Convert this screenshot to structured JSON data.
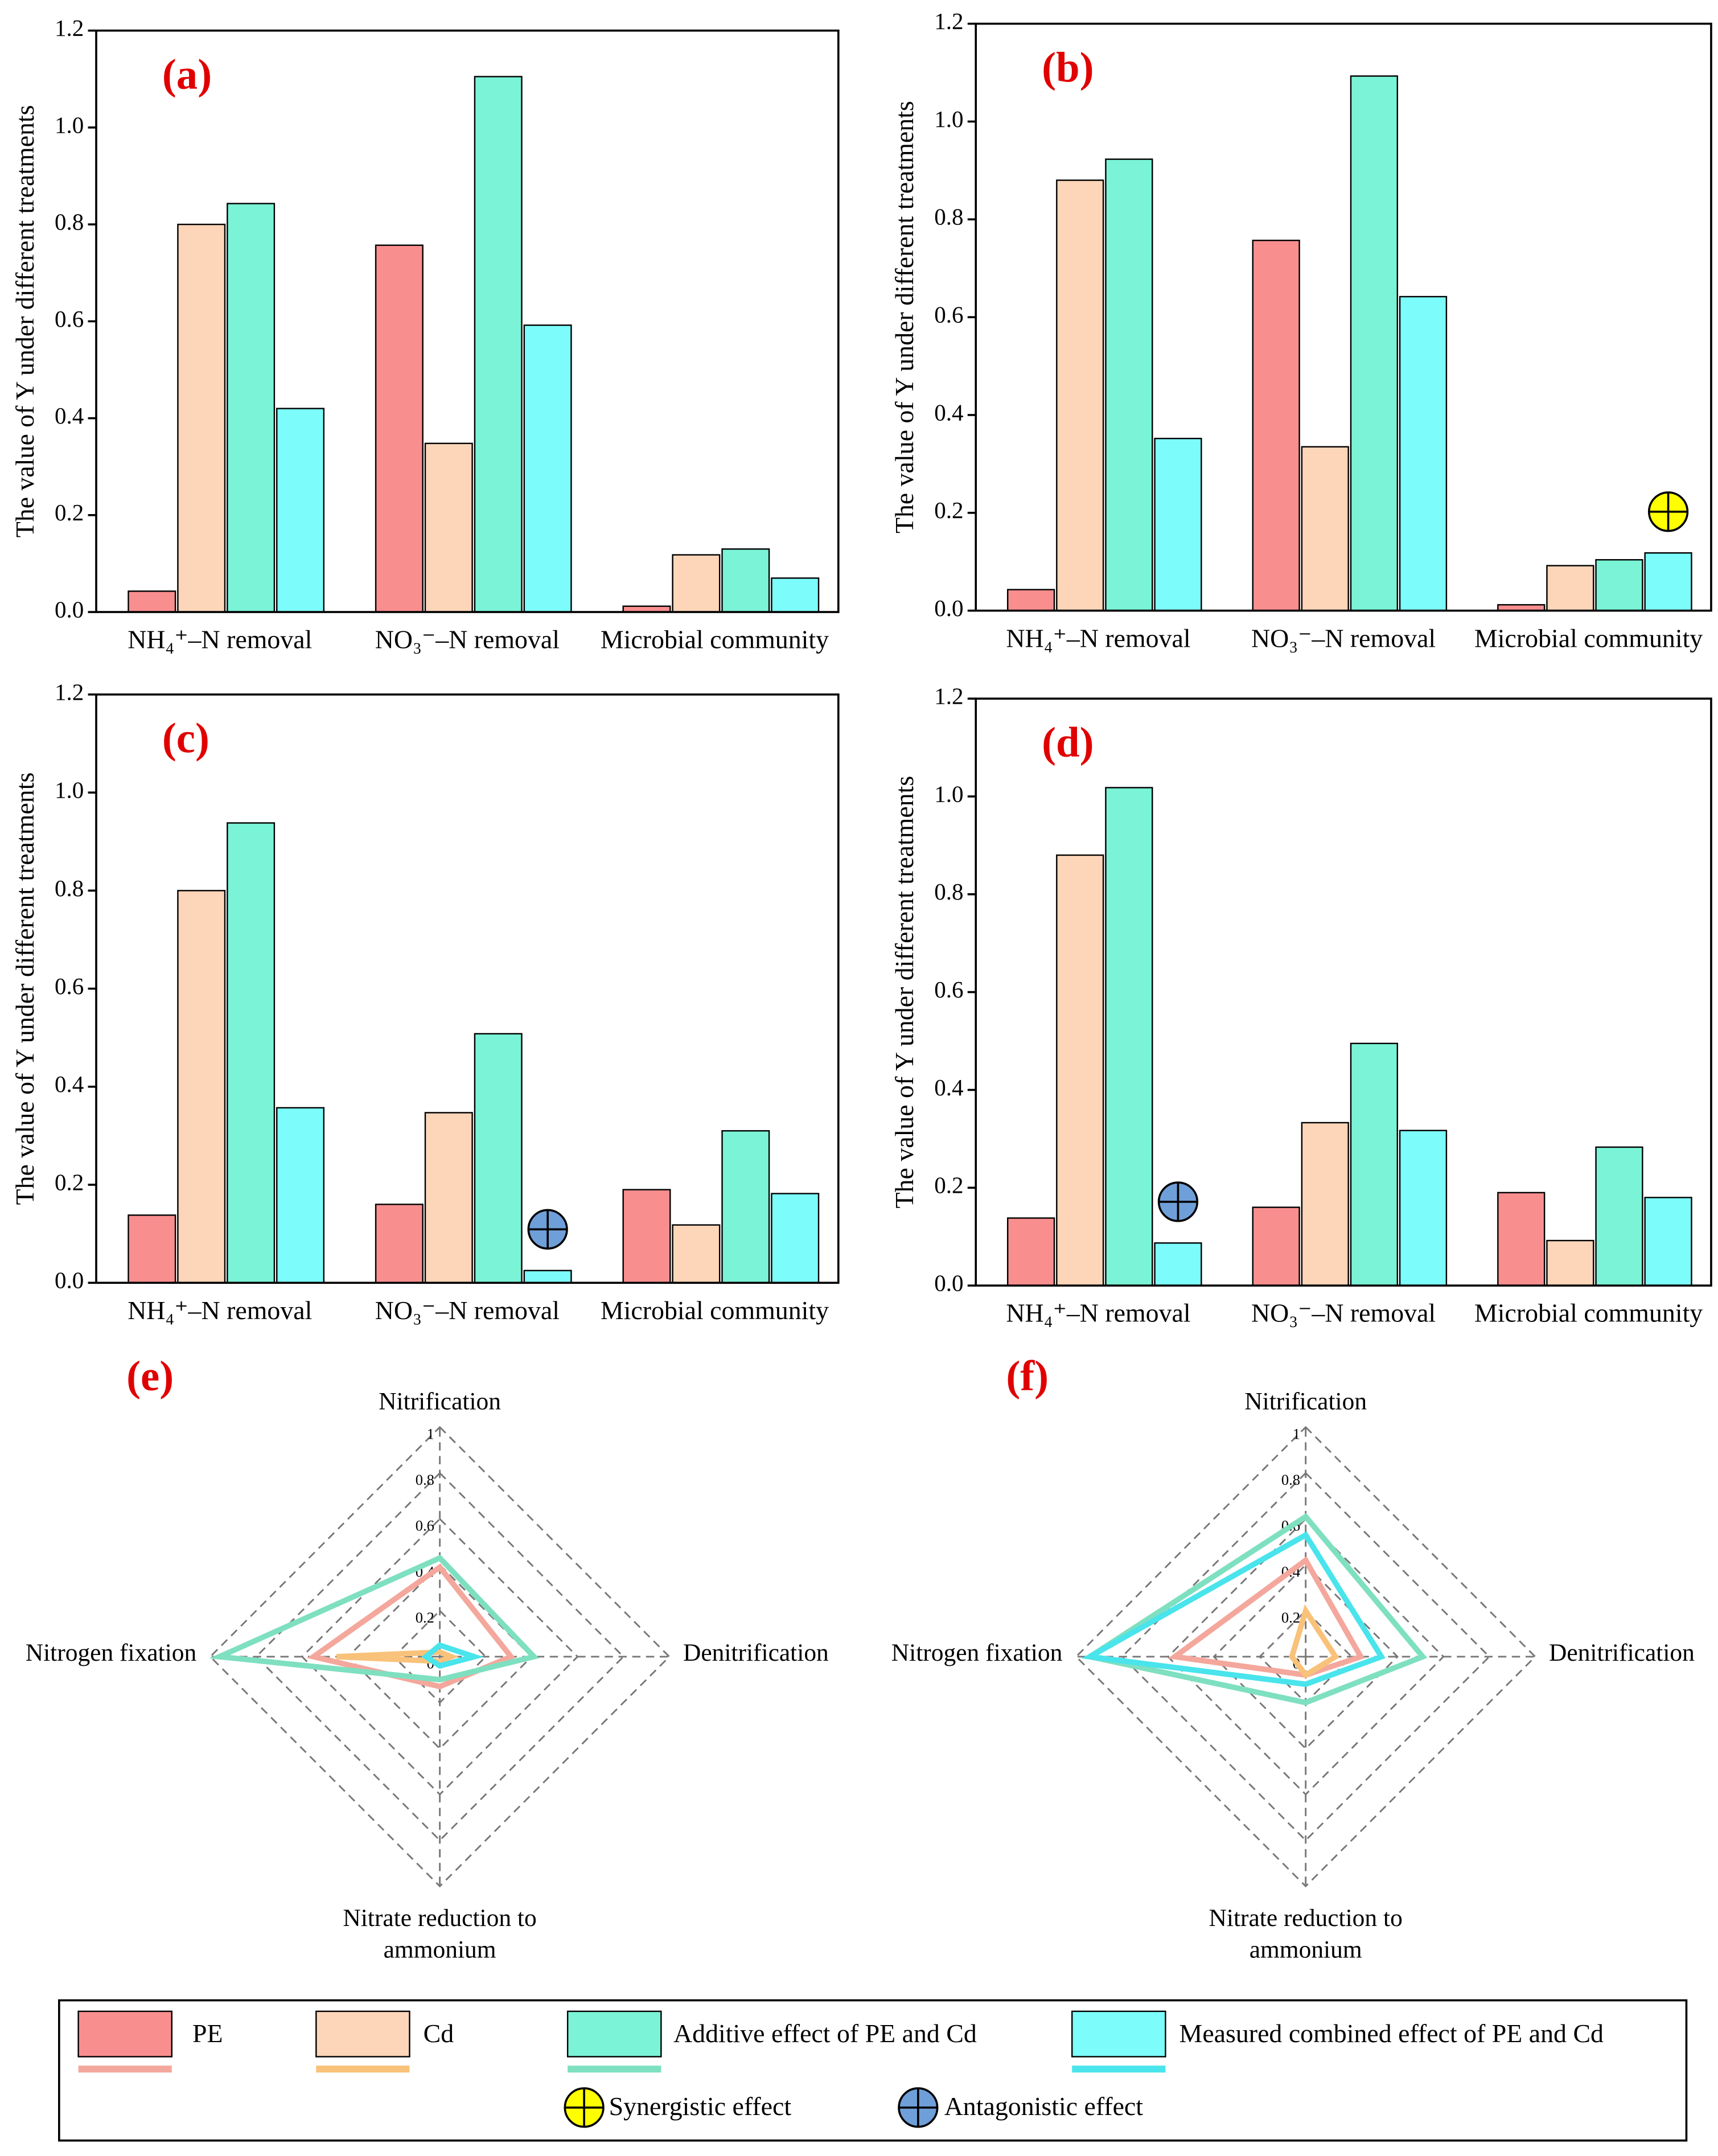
{
  "chart_data": [
    {
      "type": "bar",
      "label": "(a)",
      "ylabel": "The value of Y under different treatments",
      "categories": [
        "NH₄⁺–N removal",
        "NO₃⁻–N removal",
        "Microbial community"
      ],
      "ylim": [
        0,
        1.2
      ],
      "yticks": [
        {
          "value": 0,
          "label": "0.0"
        },
        0.2,
        0.4,
        0.6,
        0.8,
        {
          "value": 1,
          "label": "1.0"
        },
        1.2
      ],
      "series": [
        {
          "name": "PE",
          "color": "#f98e8e",
          "values": [
            0.043,
            0.757,
            0.012
          ]
        },
        {
          "name": "Cd",
          "color": "#fdd5b8",
          "values": [
            0.8,
            0.348,
            0.118
          ]
        },
        {
          "name": "Additive effect of PE and Cd",
          "color": "#7af3d6",
          "values": [
            0.843,
            1.105,
            0.13
          ]
        },
        {
          "name": "Measured combined effect of PE and Cd",
          "color": "#7dfcfc",
          "values": [
            0.42,
            0.592,
            0.07
          ]
        }
      ],
      "markers": []
    },
    {
      "type": "bar",
      "label": "(b)",
      "ylabel": "The value of Y under different treatments",
      "categories": [
        "NH₄⁺–N removal",
        "NO₃⁻–N removal",
        "Microbial community"
      ],
      "ylim": [
        0,
        1.2
      ],
      "yticks": [
        {
          "value": 0,
          "label": "0.0"
        },
        0.2,
        0.4,
        0.6,
        0.8,
        {
          "value": 1,
          "label": "1.0"
        },
        1.2
      ],
      "series": [
        {
          "name": "PE",
          "color": "#f98e8e",
          "values": [
            0.043,
            0.757,
            0.012
          ]
        },
        {
          "name": "Cd",
          "color": "#fdd5b8",
          "values": [
            0.88,
            0.335,
            0.092
          ]
        },
        {
          "name": "Additive effect of PE and Cd",
          "color": "#7af3d6",
          "values": [
            0.923,
            1.093,
            0.104
          ]
        },
        {
          "name": "Measured combined effect of PE and Cd",
          "color": "#7dfcfc",
          "values": [
            0.352,
            0.642,
            0.118
          ]
        }
      ],
      "markers": [
        {
          "effect": "Synergistic effect",
          "category": 2,
          "series": 3
        }
      ]
    },
    {
      "type": "bar",
      "label": "(c)",
      "ylabel": "The value of Y under different treatments",
      "categories": [
        "NH₄⁺–N removal",
        "NO₃⁻–N removal",
        "Microbial community"
      ],
      "ylim": [
        0,
        1.2
      ],
      "yticks": [
        {
          "value": 0,
          "label": "0.0"
        },
        0.2,
        0.4,
        0.6,
        0.8,
        {
          "value": 1,
          "label": "1.0"
        },
        1.2
      ],
      "series": [
        {
          "name": "PE",
          "color": "#f98e8e",
          "values": [
            0.138,
            0.16,
            0.19
          ]
        },
        {
          "name": "Cd",
          "color": "#fdd5b8",
          "values": [
            0.8,
            0.347,
            0.118
          ]
        },
        {
          "name": "Additive effect of PE and Cd",
          "color": "#7af3d6",
          "values": [
            0.938,
            0.508,
            0.31
          ]
        },
        {
          "name": "Measured combined effect of PE and Cd",
          "color": "#7dfcfc",
          "values": [
            0.357,
            0.025,
            0.182
          ]
        }
      ],
      "markers": [
        {
          "effect": "Antagonistic effect",
          "category": 1,
          "series": 3
        }
      ]
    },
    {
      "type": "bar",
      "label": "(d)",
      "ylabel": "The value of Y under different treatments",
      "categories": [
        "NH₄⁺–N removal",
        "NO₃⁻–N removal",
        "Microbial community"
      ],
      "ylim": [
        0,
        1.2
      ],
      "yticks": [
        {
          "value": 0,
          "label": "0.0"
        },
        0.2,
        0.4,
        0.6,
        0.8,
        {
          "value": 1,
          "label": "1.0"
        },
        1.2
      ],
      "series": [
        {
          "name": "PE",
          "color": "#f98e8e",
          "values": [
            0.138,
            0.16,
            0.19
          ]
        },
        {
          "name": "Cd",
          "color": "#fdd5b8",
          "values": [
            0.88,
            0.333,
            0.092
          ]
        },
        {
          "name": "Additive effect of PE and Cd",
          "color": "#7af3d6",
          "values": [
            1.018,
            0.495,
            0.283
          ]
        },
        {
          "name": "Measured combined effect of PE and Cd",
          "color": "#7dfcfc",
          "values": [
            0.087,
            0.317,
            0.18
          ]
        }
      ],
      "markers": [
        {
          "effect": "Antagonistic effect",
          "category": 0,
          "series": 3
        }
      ]
    },
    {
      "type": "radar",
      "label": "(e)",
      "axes": [
        "Nitrification",
        "Denitrification",
        "Nitrate reduction to ammonium",
        "Nitrogen fixation"
      ],
      "rlim": [
        0,
        1
      ],
      "rticks": [
        0,
        0.2,
        0.4,
        0.6,
        0.8,
        1
      ],
      "series": [
        {
          "name": "PE",
          "color": "#f4a79c",
          "values": [
            0.39,
            0.31,
            0.13,
            0.55
          ]
        },
        {
          "name": "Cd",
          "color": "#f9c27a",
          "values": [
            0.02,
            0.05,
            0.02,
            0.45
          ]
        },
        {
          "name": "Additive effect of PE and Cd",
          "color": "#7ee0c0",
          "values": [
            0.43,
            0.41,
            0.1,
            0.96
          ]
        },
        {
          "name": "Measured combined effect of PE and Cd",
          "color": "#49e4ec",
          "values": [
            0.05,
            0.15,
            0.04,
            0.06
          ]
        }
      ]
    },
    {
      "type": "radar",
      "label": "(f)",
      "axes": [
        "Nitrification",
        "Denitrification",
        "Nitrate reduction to ammonium",
        "Nitrogen fixation"
      ],
      "rlim": [
        0,
        1
      ],
      "rticks": [
        0,
        0.2,
        0.4,
        0.6,
        0.8,
        1
      ],
      "series": [
        {
          "name": "PE",
          "color": "#f4a79c",
          "values": [
            0.42,
            0.24,
            0.08,
            0.57
          ]
        },
        {
          "name": "Cd",
          "color": "#f9c27a",
          "values": [
            0.2,
            0.13,
            0.08,
            0.06
          ]
        },
        {
          "name": "Additive effect of PE and Cd",
          "color": "#7ee0c0",
          "values": [
            0.61,
            0.51,
            0.2,
            0.94
          ]
        },
        {
          "name": "Measured combined effect of PE and Cd",
          "color": "#49e4ec",
          "values": [
            0.53,
            0.33,
            0.12,
            0.94
          ]
        }
      ]
    }
  ],
  "legend": {
    "effects": [
      {
        "name": "Synergistic effect",
        "color": "#ffff00"
      },
      {
        "name": "Antagonistic effect",
        "color": "#6f9fd8"
      }
    ]
  }
}
